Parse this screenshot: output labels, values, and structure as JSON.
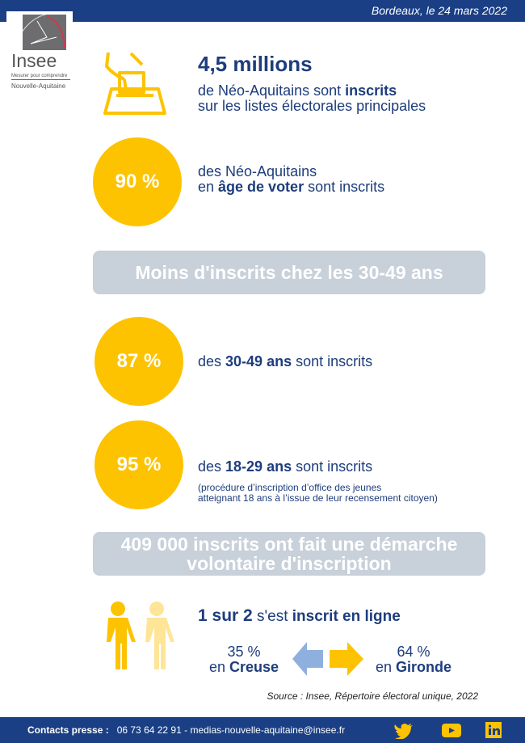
{
  "header": {
    "date": "Bordeaux, le 24 mars 2022"
  },
  "logo": {
    "name": "Insee",
    "tagline": "Mesurer pour comprendre",
    "region": "Nouvelle-Aquitaine"
  },
  "stat1": {
    "value": "4,5 millions",
    "line1_pre": "de Néo-Aquitains sont ",
    "line1_bold": "inscrits",
    "line2": "sur les listes électorales principales"
  },
  "stat2": {
    "value": "90 %",
    "line1": "des Néo-Aquitains",
    "line2_pre": "en ",
    "line2_bold": "âge de voter",
    "line2_post": " sont inscrits"
  },
  "banner1": "Moins d'inscrits chez les 30-49 ans",
  "stat3": {
    "value": "87 %",
    "pre": "des ",
    "bold": "30-49 ans",
    "post": " sont inscrits"
  },
  "stat4": {
    "value": "95 %",
    "pre": "des ",
    "bold": "18-29 ans",
    "post": " sont inscrits",
    "note1": "(procédure d’inscription d’office des jeunes",
    "note2": "atteignant 18 ans à l’issue de leur recensement citoyen)"
  },
  "banner2": {
    "line1": "409 000 inscrits ont fait une démarche",
    "line2": "volontaire d'inscription"
  },
  "online": {
    "value": "1 sur 2",
    "pre": " s'est ",
    "bold": "inscrit en ligne"
  },
  "creuse": {
    "value": "35 %",
    "pre": "en ",
    "bold": "Creuse"
  },
  "gironde": {
    "value": "64 %",
    "pre": "en ",
    "bold": "Gironde"
  },
  "source": "Source : Insee, Répertoire électoral unique, 2022",
  "footer": {
    "label": "Contacts presse :",
    "contact": "06 73 64 22 91 - medias-nouvelle-aquitaine@insee.fr",
    "icons": [
      "twitter-icon",
      "youtube-icon",
      "linkedin-icon"
    ]
  },
  "colors": {
    "blue": "#1a3f85",
    "yellow": "#fdc300",
    "gray": "#c8d0da",
    "lightblue": "#8fb0df"
  }
}
